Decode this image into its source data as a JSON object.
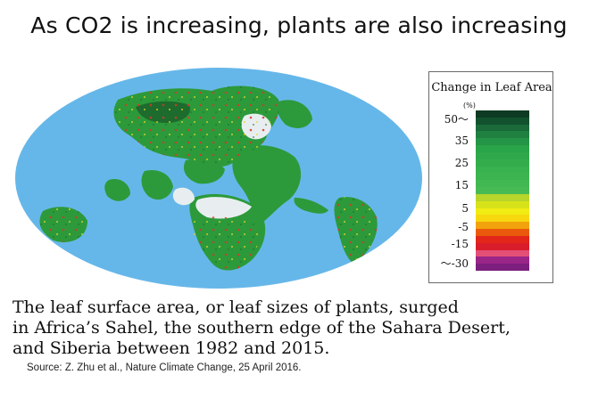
{
  "title": "As CO2 is increasing, plants are also increasing",
  "legend": {
    "title": "Change in Leaf Area",
    "unit": "(%)",
    "ticks": [
      {
        "label": "50～",
        "level": 50
      },
      {
        "label": "35",
        "level": 35
      },
      {
        "label": "25",
        "level": 25
      },
      {
        "label": "15",
        "level": 15
      },
      {
        "label": "5",
        "level": 5
      },
      {
        "label": "-5",
        "level": -5
      },
      {
        "label": "-15",
        "level": -15
      },
      {
        "label": "～-30",
        "level": -30
      }
    ],
    "colors": [
      "#0d3a22",
      "#12512e",
      "#1a6a3a",
      "#1f8040",
      "#249446",
      "#2aa448",
      "#2ea84a",
      "#33ad4c",
      "#38b24e",
      "#3cb550",
      "#42b852",
      "#48ba54",
      "#b7d52a",
      "#d8e21a",
      "#f1ec13",
      "#f7d80f",
      "#f2a20c",
      "#ea5a0d",
      "#e3261a",
      "#da1d2a",
      "#e34f76",
      "#9a2586",
      "#7c1f7e"
    ]
  },
  "caption": {
    "lines": [
      "The leaf surface area, or leaf sizes of plants, surged",
      "in Africa’s Sahel, the southern edge of the Sahara Desert,",
      "and Siberia between 1982 and 2015."
    ]
  },
  "source": "Source: Z. Zhu et al., Nature Climate Change, 25 April 2016.",
  "map_colors": {
    "ocean": "#66b7e9",
    "vegetation": "#2c9a3a",
    "dense_vegetation": "#1d6b2d",
    "increase_hot": "#d23a2a",
    "ice_desert": "#e8eef0"
  }
}
